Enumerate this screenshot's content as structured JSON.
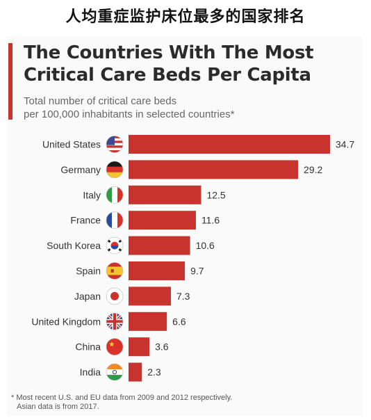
{
  "banner": "人均重症监护床位最多的国家排名",
  "chart_data": {
    "type": "bar",
    "orientation": "horizontal",
    "title": "The Countries With The Most Critical Care Beds Per Capita",
    "subtitle_line1": "Total number of critical care beds",
    "subtitle_line2": "per 100,000 inhabitants in selected countries*",
    "categories": [
      "United States",
      "Germany",
      "Italy",
      "France",
      "South Korea",
      "Spain",
      "Japan",
      "United Kingdom",
      "China",
      "India"
    ],
    "values": [
      34.7,
      29.2,
      12.5,
      11.6,
      10.6,
      9.7,
      7.3,
      6.6,
      3.6,
      2.3
    ],
    "value_labels": [
      "34.7",
      "29.2",
      "12.5",
      "11.6",
      "10.6",
      "9.7",
      "7.3",
      "6.6",
      "3.6",
      "2.3"
    ],
    "flags": [
      "us-flag-icon",
      "germany-flag-icon",
      "italy-flag-icon",
      "france-flag-icon",
      "south-korea-flag-icon",
      "spain-flag-icon",
      "japan-flag-icon",
      "uk-flag-icon",
      "china-flag-icon",
      "india-flag-icon"
    ],
    "bar_color": "#c8332d",
    "xlim": [
      0,
      34.7
    ],
    "grid": false
  },
  "footnote_line1": "* Most recent U.S. and EU data from 2009 and 2012 respectively.",
  "footnote_line2": "Asian data is from 2017."
}
